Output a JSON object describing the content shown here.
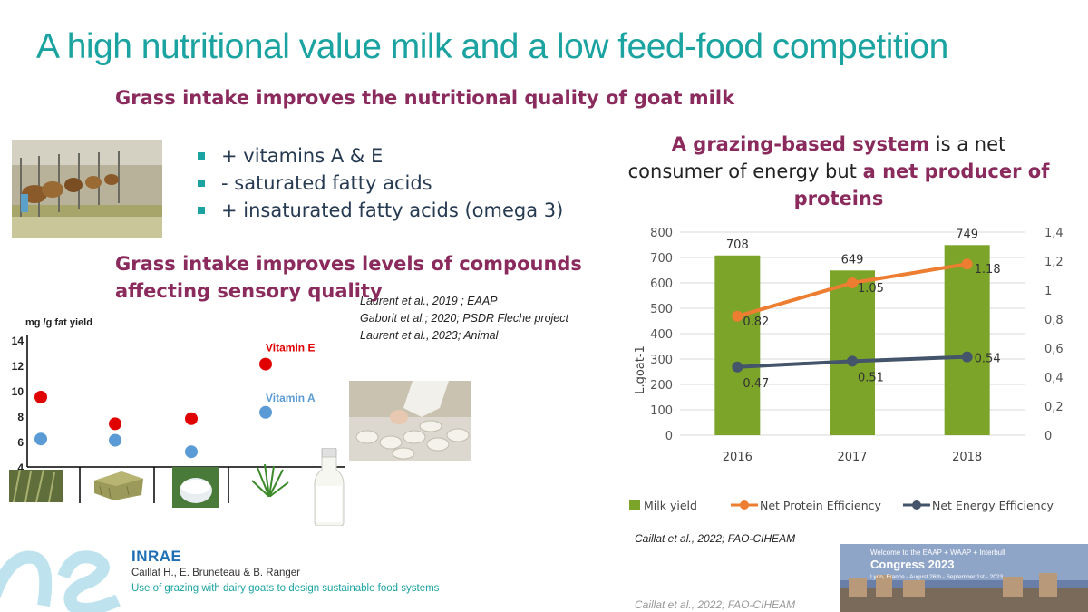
{
  "title": "A high nutritional value milk and a low feed-food competition",
  "left": {
    "subhead1": "Grass intake improves the nutritional quality of goat milk",
    "bullets": [
      "+ vitamins A & E",
      "- saturated fatty acids",
      "+ insaturated fatty acids (omega 3)"
    ],
    "subhead2": "Grass intake improves levels of compounds affecting sensory quality",
    "references": [
      "Laurent et al., 2019 ; EAAP",
      "Gaborit et al.; 2020; PSDR Fleche project",
      "Laurent et al., 2023; Animal"
    ]
  },
  "right": {
    "title_hl1": "A grazing-based system",
    "title_mid": " is a net consumer of energy but ",
    "title_hl2": "a net producer of proteins",
    "reference": "Caillat et al., 2022; FAO-CIHEAM",
    "reference_clipped": "Caillat et al., 2022; FAO-CIHEAM"
  },
  "footer": {
    "logo": "INRAE",
    "authors": "Caillat H., E. Bruneteau & B. Ranger",
    "subtitle": "Use of grazing with dairy goats to design sustainable food systems",
    "congress_banner": "Welcome to the EAAP + WAAP + Interbull",
    "congress_title": "Congress 2023",
    "congress_dates": "Lyon, France - August 26th - September 1st - 2023"
  },
  "chart_data": [
    {
      "type": "scatter",
      "ylabel": "mg /g fat yield",
      "yticks": [
        4,
        6,
        8,
        10,
        12,
        14
      ],
      "ylim": [
        4,
        14
      ],
      "categories_icons": [
        "maize-silage-icon",
        "hay-bale-icon",
        "wrapped-silage-icon",
        "fresh-grass-icon"
      ],
      "series": [
        {
          "name": "Vitamin E",
          "color": "#e00000",
          "values": [
            9.5,
            7.4,
            7.8,
            12.1
          ]
        },
        {
          "name": "Vitamin A",
          "color": "#5b9bd5",
          "values": [
            6.2,
            6.1,
            5.2,
            8.3
          ]
        }
      ]
    },
    {
      "type": "bar",
      "categories": [
        "2016",
        "2017",
        "2018"
      ],
      "ylabel": "L.goat-1",
      "yticks": [
        0,
        100,
        200,
        300,
        400,
        500,
        600,
        700,
        800
      ],
      "ylim": [
        0,
        800
      ],
      "y2ticks": [
        "0",
        "0,2",
        "0,4",
        "0,6",
        "0,8",
        "1",
        "1,2",
        "1,4"
      ],
      "y2lim": [
        0,
        1.4
      ],
      "bar_series": {
        "name": "Milk yield",
        "color": "#7ba428",
        "values": [
          708,
          649,
          749
        ]
      },
      "line_series": [
        {
          "name": "Net Protein Efficiency",
          "color": "#ed7d31",
          "values": [
            0.82,
            1.05,
            1.18
          ],
          "labels": [
            "0.82",
            "1.05",
            "1.18"
          ]
        },
        {
          "name": "Net Energy Efficiency",
          "color": "#44546a",
          "values": [
            0.47,
            0.51,
            0.54
          ],
          "labels": [
            "0.47",
            "0.51",
            "0.54"
          ]
        }
      ],
      "legend": "bottom"
    }
  ]
}
